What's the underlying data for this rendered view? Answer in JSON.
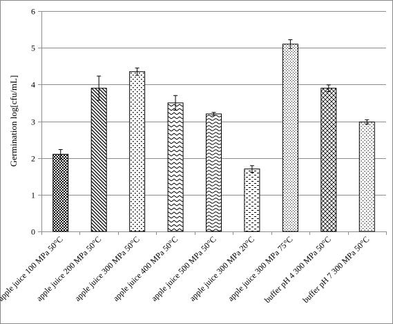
{
  "chart_data": {
    "type": "bar",
    "ylabel": "Germination  log[cfu/mL]",
    "xlabel": "",
    "title": "",
    "ylim": [
      0,
      6
    ],
    "yticks": [
      0,
      1,
      2,
      3,
      4,
      5,
      6
    ],
    "grid": true,
    "legend": "none",
    "categories": [
      "apple juice 100 MPa 50°C",
      "apple juice 200 MPa 50°C",
      "apple juice 300 MPa 50°C",
      "apple juice 400 MPa 50°C",
      "apple juice 500 MPa 50°C",
      "apple juice 300 MPa 20°C",
      "apple juice 300 MPa 75°C",
      "buffer pH 4 300 MPa 50°C",
      "buffer pH 7 300 MPa 50°C"
    ],
    "values": [
      2.1,
      3.9,
      4.35,
      3.5,
      3.2,
      1.7,
      5.1,
      3.9,
      2.98
    ],
    "errors": [
      0.13,
      0.33,
      0.1,
      0.2,
      0.04,
      0.09,
      0.12,
      0.09,
      0.06
    ],
    "patterns": [
      "checker",
      "diag-right",
      "dots-large",
      "zigzag",
      "wave",
      "dashes",
      "dots-fine",
      "diamond",
      "dots-medium"
    ],
    "colors": {
      "bar_stroke": "#000000",
      "bar_fill": "#ffffff",
      "grid": "#8c8c8c",
      "axis": "#8c8c8c"
    }
  }
}
